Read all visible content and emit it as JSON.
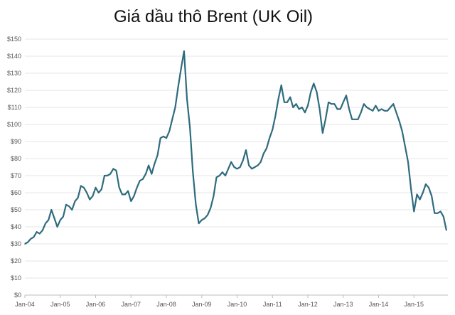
{
  "chart_data": {
    "type": "line",
    "title": "Giá dầu thô Brent (UK Oil)",
    "xlabel": "",
    "ylabel": "",
    "ylim": [
      0,
      150
    ],
    "grid": "horizontal",
    "legend": "none",
    "x_tick_labels": [
      "Jan-04",
      "Jan-05",
      "Jan-06",
      "Jan-07",
      "Jan-08",
      "Jan-09",
      "Jan-10",
      "Jan-11",
      "Jan-12",
      "Jan-13",
      "Jan-14",
      "Jan-15"
    ],
    "y_tick_labels": [
      "$0",
      "$10",
      "$20",
      "$30",
      "$40",
      "$50",
      "$60",
      "$70",
      "$80",
      "$90",
      "$100",
      "$110",
      "$120",
      "$130",
      "$140",
      "$150"
    ],
    "series": [
      {
        "color": "#2e6b7e",
        "x": [
          "2004-01",
          "2004-02",
          "2004-03",
          "2004-04",
          "2004-05",
          "2004-06",
          "2004-07",
          "2004-08",
          "2004-09",
          "2004-10",
          "2004-11",
          "2004-12",
          "2005-01",
          "2005-02",
          "2005-03",
          "2005-04",
          "2005-05",
          "2005-06",
          "2005-07",
          "2005-08",
          "2005-09",
          "2005-10",
          "2005-11",
          "2005-12",
          "2006-01",
          "2006-02",
          "2006-03",
          "2006-04",
          "2006-05",
          "2006-06",
          "2006-07",
          "2006-08",
          "2006-09",
          "2006-10",
          "2006-11",
          "2006-12",
          "2007-01",
          "2007-02",
          "2007-03",
          "2007-04",
          "2007-05",
          "2007-06",
          "2007-07",
          "2007-08",
          "2007-09",
          "2007-10",
          "2007-11",
          "2007-12",
          "2008-01",
          "2008-02",
          "2008-03",
          "2008-04",
          "2008-05",
          "2008-06",
          "2008-07",
          "2008-08",
          "2008-09",
          "2008-10",
          "2008-11",
          "2008-12",
          "2009-01",
          "2009-02",
          "2009-03",
          "2009-04",
          "2009-05",
          "2009-06",
          "2009-07",
          "2009-08",
          "2009-09",
          "2009-10",
          "2009-11",
          "2009-12",
          "2010-01",
          "2010-02",
          "2010-03",
          "2010-04",
          "2010-05",
          "2010-06",
          "2010-07",
          "2010-08",
          "2010-09",
          "2010-10",
          "2010-11",
          "2010-12",
          "2011-01",
          "2011-02",
          "2011-03",
          "2011-04",
          "2011-05",
          "2011-06",
          "2011-07",
          "2011-08",
          "2011-09",
          "2011-10",
          "2011-11",
          "2011-12",
          "2012-01",
          "2012-02",
          "2012-03",
          "2012-04",
          "2012-05",
          "2012-06",
          "2012-07",
          "2012-08",
          "2012-09",
          "2012-10",
          "2012-11",
          "2012-12",
          "2013-01",
          "2013-02",
          "2013-03",
          "2013-04",
          "2013-05",
          "2013-06",
          "2013-07",
          "2013-08",
          "2013-09",
          "2013-10",
          "2013-11",
          "2013-12",
          "2014-01",
          "2014-02",
          "2014-03",
          "2014-04",
          "2014-05",
          "2014-06",
          "2014-07",
          "2014-08",
          "2014-09",
          "2014-10",
          "2014-11",
          "2014-12",
          "2015-01",
          "2015-02",
          "2015-03",
          "2015-04",
          "2015-05",
          "2015-06",
          "2015-07",
          "2015-08",
          "2015-09",
          "2015-10",
          "2015-11",
          "2015-12"
        ],
        "values": [
          30,
          31,
          33,
          34,
          37,
          36,
          38,
          42,
          44,
          50,
          45,
          40,
          44,
          46,
          53,
          52,
          50,
          55,
          57,
          64,
          63,
          60,
          56,
          58,
          63,
          60,
          62,
          70,
          70,
          71,
          74,
          73,
          63,
          59,
          59,
          61,
          55,
          58,
          63,
          67,
          68,
          71,
          76,
          71,
          77,
          82,
          92,
          93,
          92,
          96,
          103,
          110,
          122,
          133,
          143,
          115,
          98,
          72,
          53,
          42,
          44,
          45,
          47,
          51,
          58,
          69,
          70,
          72,
          70,
          74,
          78,
          75,
          74,
          75,
          79,
          85,
          76,
          74,
          75,
          76,
          78,
          83,
          86,
          92,
          97,
          105,
          115,
          123,
          113,
          113,
          116,
          110,
          112,
          109,
          110,
          107,
          111,
          119,
          124,
          119,
          109,
          95,
          103,
          113,
          112,
          112,
          109,
          109,
          113,
          117,
          109,
          103,
          103,
          103,
          107,
          112,
          110,
          109,
          108,
          111,
          108,
          109,
          108,
          108,
          110,
          112,
          107,
          102,
          96,
          87,
          78,
          62,
          49,
          59,
          56,
          60,
          65,
          63,
          58,
          48,
          48,
          49,
          46,
          38
        ]
      }
    ]
  }
}
